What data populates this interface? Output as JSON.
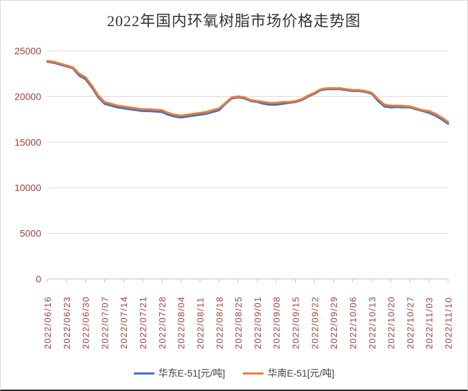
{
  "chart_data": {
    "type": "line",
    "title": "2022年国内环氧树脂市场价格走势图",
    "xlabel": "",
    "ylabel": "",
    "ylim": [
      0,
      25000
    ],
    "yticks": [
      0,
      5000,
      10000,
      15000,
      20000,
      25000
    ],
    "grid": "horizontal",
    "legend_position": "bottom",
    "axis_label_color": "#A0403C",
    "title_color": "#333333",
    "legend_text_color": "#404040",
    "grid_color": "#D9D9D9",
    "axis_line_color": "#BFBFBF",
    "categories": [
      "2022/06/16",
      "2022/06/23",
      "2022/06/30",
      "2022/07/07",
      "2022/07/14",
      "2022/07/21",
      "2022/07/28",
      "2022/08/04",
      "2022/08/11",
      "2022/08/18",
      "2022/08/25",
      "2022/09/01",
      "2022/09/08",
      "2022/09/15",
      "2022/09/22",
      "2022/09/29",
      "2022/10/06",
      "2022/10/13",
      "2022/10/20",
      "2022/10/27",
      "2022/11/03",
      "2022/11/10"
    ],
    "points_per_tick": 3,
    "series": [
      {
        "name": "华东E-51[元/吨]",
        "color": "#4472C4",
        "values": [
          23800,
          23700,
          23500,
          23300,
          23100,
          22300,
          21900,
          21000,
          19900,
          19200,
          19000,
          18800,
          18700,
          18600,
          18500,
          18400,
          18400,
          18350,
          18300,
          18000,
          17800,
          17700,
          17800,
          17900,
          18000,
          18100,
          18300,
          18500,
          19200,
          19800,
          19900,
          19800,
          19500,
          19400,
          19200,
          19100,
          19100,
          19200,
          19300,
          19400,
          19600,
          20000,
          20300,
          20700,
          20800,
          20800,
          20800,
          20700,
          20600,
          20600,
          20500,
          20300,
          19500,
          18900,
          18800,
          18850,
          18800,
          18800,
          18600,
          18400,
          18200,
          17900,
          17500,
          17000
        ]
      },
      {
        "name": "华南E-51[元/吨]",
        "color": "#ED7D31",
        "values": [
          23900,
          23800,
          23600,
          23400,
          23200,
          22500,
          22100,
          21200,
          20100,
          19400,
          19200,
          19000,
          18900,
          18800,
          18700,
          18600,
          18600,
          18550,
          18500,
          18200,
          18000,
          17900,
          18000,
          18100,
          18200,
          18300,
          18500,
          18700,
          19300,
          19900,
          20000,
          19900,
          19600,
          19500,
          19400,
          19300,
          19300,
          19400,
          19400,
          19500,
          19700,
          20100,
          20400,
          20800,
          20900,
          20900,
          20900,
          20800,
          20700,
          20700,
          20600,
          20400,
          19700,
          19100,
          19000,
          19000,
          18950,
          18900,
          18700,
          18500,
          18400,
          18100,
          17700,
          17200
        ]
      }
    ]
  }
}
